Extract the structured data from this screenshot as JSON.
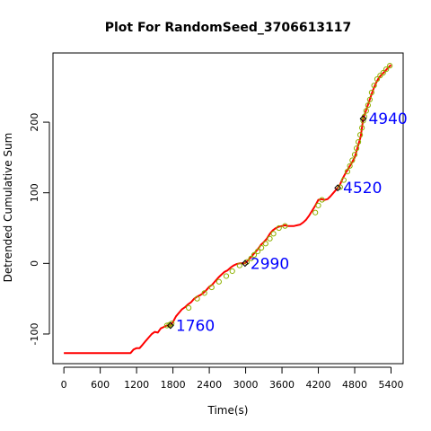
{
  "chart_data": {
    "type": "line",
    "title": "Plot For RandomSeed_3706613117",
    "xlabel": "Time(s)",
    "ylabel": "Detrended Cumulative Sum",
    "xlim": [
      -180,
      5600
    ],
    "ylim": [
      -142,
      298
    ],
    "x_ticks": [
      0,
      600,
      1200,
      1800,
      2400,
      3000,
      3600,
      4200,
      4800,
      5400
    ],
    "y_ticks": [
      -100,
      0,
      100,
      200
    ],
    "grid": false,
    "colors": {
      "line": "#ff0000",
      "change_marker": "#000000",
      "point_marker": "#8db100",
      "annotation": "#0000ff"
    },
    "series": [
      {
        "role": "cumulative-sum",
        "x": [
          0,
          1100,
          1150,
          1200,
          1250,
          1300,
          1350,
          1400,
          1450,
          1500,
          1550,
          1600,
          1650,
          1700,
          1760,
          1800,
          1850,
          1900,
          1950,
          2000,
          2050,
          2100,
          2150,
          2200,
          2250,
          2300,
          2350,
          2400,
          2450,
          2500,
          2550,
          2600,
          2650,
          2700,
          2750,
          2800,
          2850,
          2900,
          2990,
          3050,
          3100,
          3150,
          3200,
          3250,
          3300,
          3350,
          3400,
          3450,
          3500,
          3550,
          3600,
          3650,
          3700,
          3750,
          3800,
          3850,
          3900,
          3950,
          4000,
          4050,
          4100,
          4150,
          4200,
          4250,
          4300,
          4350,
          4400,
          4450,
          4520,
          4560,
          4600,
          4650,
          4700,
          4750,
          4800,
          4850,
          4900,
          4940,
          4980,
          5020,
          5060,
          5100,
          5150,
          5200,
          5250,
          5300,
          5350,
          5400
        ],
        "y": [
          -127,
          -127,
          -122,
          -120,
          -120,
          -115,
          -110,
          -105,
          -100,
          -97,
          -98,
          -92,
          -90,
          -88,
          -88,
          -83,
          -75,
          -70,
          -65,
          -62,
          -58,
          -55,
          -50,
          -47,
          -45,
          -42,
          -38,
          -33,
          -30,
          -25,
          -20,
          -16,
          -12,
          -10,
          -6,
          -3,
          -1,
          0,
          0,
          5,
          10,
          15,
          20,
          26,
          30,
          35,
          42,
          47,
          50,
          52,
          53,
          54,
          53,
          53,
          53,
          54,
          55,
          58,
          62,
          68,
          75,
          82,
          90,
          91,
          90,
          91,
          95,
          100,
          107,
          112,
          120,
          128,
          135,
          142,
          150,
          165,
          180,
          205,
          215,
          225,
          235,
          245,
          255,
          263,
          268,
          272,
          277,
          281
        ]
      }
    ],
    "points": {
      "x": [
        1700,
        1740,
        1780,
        2060,
        2200,
        2320,
        2440,
        2560,
        2680,
        2780,
        2900,
        3020,
        3090,
        3140,
        3200,
        3260,
        3330,
        3400,
        3460,
        3550,
        3650,
        4150,
        4200,
        4260,
        4560,
        4620,
        4680,
        4720,
        4760,
        4800,
        4830,
        4860,
        4890,
        4920,
        4940,
        4960,
        4990,
        5020,
        5050,
        5080,
        5120,
        5170,
        5220,
        5270,
        5320,
        5380
      ],
      "y": [
        -88,
        -87,
        -85,
        -63,
        -50,
        -42,
        -34,
        -26,
        -18,
        -11,
        -3,
        2,
        7,
        12,
        17,
        22,
        28,
        35,
        42,
        50,
        53,
        72,
        82,
        90,
        108,
        118,
        130,
        138,
        146,
        154,
        163,
        172,
        182,
        192,
        202,
        208,
        216,
        224,
        232,
        242,
        252,
        261,
        266,
        270,
        275,
        280
      ]
    },
    "change_points": {
      "x": [
        1760,
        2990,
        4520,
        4940
      ],
      "y": [
        -88,
        0,
        107,
        205
      ]
    },
    "annotations": [
      "1760",
      "2990",
      "4520",
      "4940"
    ]
  }
}
